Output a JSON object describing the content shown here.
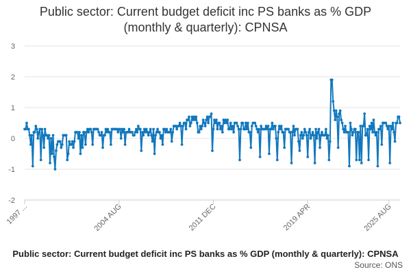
{
  "chart_data": {
    "type": "line",
    "title_line1": "Public sector: Current budget deficit inc PS banks as % GDP",
    "title_line2": "(monthly & quarterly): CPNSA",
    "xlabel": "",
    "ylabel": "",
    "ylim": [
      -2,
      3
    ],
    "yticks": [
      -2,
      -1,
      0,
      1,
      2,
      3
    ],
    "x_tick_labels": [
      {
        "label": "1997 ...",
        "index": 0
      },
      {
        "label": "2004 AUG",
        "index": 93
      },
      {
        "label": "2011 DEC",
        "index": 186
      },
      {
        "label": "2019 APR",
        "index": 279
      },
      {
        "label": "2025 AUG",
        "index": 359
      }
    ],
    "series": [
      {
        "name": "CPNSA",
        "color": "#1278be",
        "values": [
          0.3,
          0.3,
          0.5,
          0.3,
          0.3,
          0.1,
          -0.2,
          0.1,
          -0.9,
          0.2,
          0.2,
          0.4,
          0.3,
          0.0,
          0.2,
          0.3,
          -0.7,
          0.3,
          0.1,
          -0.3,
          0.3,
          0.1,
          0.1,
          0.0,
          0.1,
          -0.8,
          0.0,
          -0.5,
          0.1,
          -0.6,
          -1.0,
          -0.4,
          -0.2,
          -0.1,
          -0.1,
          -0.1,
          -0.3,
          -0.2,
          0.1,
          0.1,
          0.1,
          0.1,
          -0.7,
          -0.5,
          -0.1,
          -0.2,
          -0.2,
          -0.1,
          -0.3,
          -0.1,
          0.2,
          0.2,
          0.2,
          0.0,
          0.2,
          -0.5,
          0.1,
          -0.3,
          0.2,
          0.2,
          -0.2,
          0.2,
          0.3,
          0.2,
          0.3,
          0.3,
          0.2,
          -0.2,
          0.3,
          0.3,
          0.3,
          0.3,
          0.3,
          0.2,
          0.1,
          0.1,
          0.2,
          -0.3,
          0.1,
          0.1,
          0.3,
          0.2,
          0.3,
          0.2,
          0.2,
          -0.2,
          0.3,
          0.3,
          0.3,
          0.3,
          0.3,
          0.3,
          0.2,
          0.3,
          0.3,
          0.0,
          0.3,
          0.2,
          0.3,
          -0.2,
          0.2,
          0.2,
          0.2,
          0.3,
          0.2,
          0.2,
          0.2,
          0.1,
          0.1,
          0.2,
          0.3,
          0.2,
          0.4,
          0.3,
          0.3,
          -0.4,
          0.2,
          0.1,
          0.3,
          0.2,
          0.3,
          0.2,
          0.1,
          0.2,
          0.3,
          0.1,
          -0.1,
          0.3,
          -0.5,
          0.1,
          0.2,
          0.3,
          0.2,
          0.2,
          0.0,
          0.1,
          -0.2,
          0.3,
          0.3,
          0.2,
          0.3,
          0.2,
          0.2,
          0.2,
          0.3,
          -0.1,
          0.2,
          0.4,
          0.4,
          0.4,
          0.3,
          0.4,
          0.4,
          0.5,
          0.4,
          -0.2,
          0.4,
          0.5,
          0.5,
          0.3,
          0.6,
          0.6,
          0.7,
          0.4,
          0.5,
          0.7,
          0.6,
          0.7,
          0.6,
          0.7,
          0.5,
          0.2,
          0.2,
          0.4,
          0.3,
          0.4,
          0.6,
          0.5,
          0.4,
          0.6,
          0.7,
          0.5,
          0.7,
          0.7,
          0.8,
          -0.4,
          0.3,
          0.6,
          0.5,
          0.6,
          0.3,
          0.5,
          0.5,
          0.3,
          0.4,
          0.2,
          0.6,
          0.5,
          0.6,
          0.5,
          0.6,
          0.3,
          0.3,
          0.5,
          0.3,
          0.4,
          0.2,
          0.5,
          0.5,
          0.5,
          0.4,
          0.3,
          -0.7,
          0.3,
          0.5,
          0.5,
          0.3,
          0.3,
          0.5,
          0.3,
          0.5,
          0.2,
          0.2,
          -0.3,
          0.4,
          0.5,
          0.5,
          0.5,
          0.4,
          0.3,
          0.2,
          0.3,
          -0.6,
          0.4,
          0.3,
          0.3,
          0.3,
          0.3,
          0.4,
          0.3,
          0.4,
          -0.5,
          0.3,
          0.3,
          0.5,
          0.3,
          0.4,
          0.4,
          0.0,
          -0.7,
          0.2,
          0.4,
          0.3,
          0.4,
          0.2,
          0.2,
          -0.3,
          0.3,
          0.3,
          0.3,
          0.3,
          0.2,
          0.2,
          -0.8,
          0.2,
          0.4,
          0.1,
          0.3,
          0.3,
          0.3,
          -0.1,
          -0.4,
          0.1,
          0.2,
          0.0,
          0.1,
          0.3,
          0.2,
          0.1,
          -0.6,
          0.2,
          0.3,
          0.0,
          0.1,
          0.2,
          0.1,
          -0.8,
          0.3,
          0.0,
          0.2,
          0.3,
          -0.3,
          0.1,
          0.2,
          0.1,
          0.1,
          0.1,
          0.3,
          0.0,
          0.1,
          -0.7,
          -0.1,
          1.9,
          1.9,
          1.2,
          0.9,
          0.6,
          0.9,
          0.7,
          -0.3,
          0.8,
          0.9,
          0.6,
          0.5,
          0.3,
          0.2,
          0.4,
          0.2,
          0.2,
          0.2,
          -0.9,
          0.5,
          0.3,
          0.1,
          0.2,
          0.3,
          0.3,
          -0.7,
          0.2,
          0.2,
          -0.7,
          0.4,
          -0.8,
          0.4,
          0.4,
          0.8,
          0.1,
          0.1,
          0.3,
          -0.7,
          0.4,
          0.3,
          0.5,
          0.2,
          0.6,
          0.2,
          0.1,
          0.2,
          -0.9,
          0.3,
          0.3,
          0.4,
          -0.2,
          0.5,
          0.5,
          0.5,
          0.5,
          0.4,
          0.3,
          0.4,
          -0.8,
          0.4,
          0.3,
          0.5,
          0.2,
          -0.1,
          0.5,
          0.5,
          0.7,
          0.7,
          0.5
        ]
      }
    ]
  },
  "caption": "Public sector: Current budget deficit inc PS banks as % GDP (monthly & quarterly): CPNSA",
  "source_label": "Source: ONS"
}
